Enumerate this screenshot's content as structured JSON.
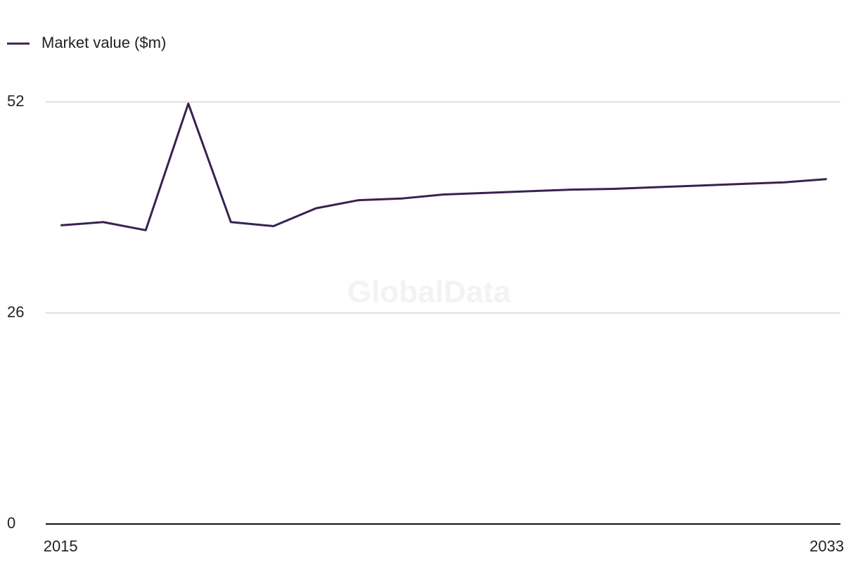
{
  "chart_data": {
    "type": "line",
    "watermark": "GlobalData",
    "x": [
      2015,
      2016,
      2017,
      2018,
      2019,
      2020,
      2021,
      2022,
      2023,
      2024,
      2025,
      2026,
      2027,
      2028,
      2029,
      2030,
      2031,
      2032,
      2033
    ],
    "series": [
      {
        "name": "Market value ($m)",
        "color": "#38224f",
        "values": [
          36.8,
          37.2,
          36.2,
          51.8,
          37.2,
          36.7,
          38.9,
          39.9,
          40.1,
          40.6,
          40.8,
          41.0,
          41.2,
          41.3,
          41.5,
          41.7,
          41.9,
          42.1,
          42.5
        ]
      }
    ],
    "xlim": [
      2014.65,
      2033.32
    ],
    "xticks": [
      2015,
      2033
    ],
    "ylim": [
      0,
      52
    ],
    "yticks": [
      0,
      26,
      52
    ],
    "grid": true,
    "legend": "top-left"
  }
}
